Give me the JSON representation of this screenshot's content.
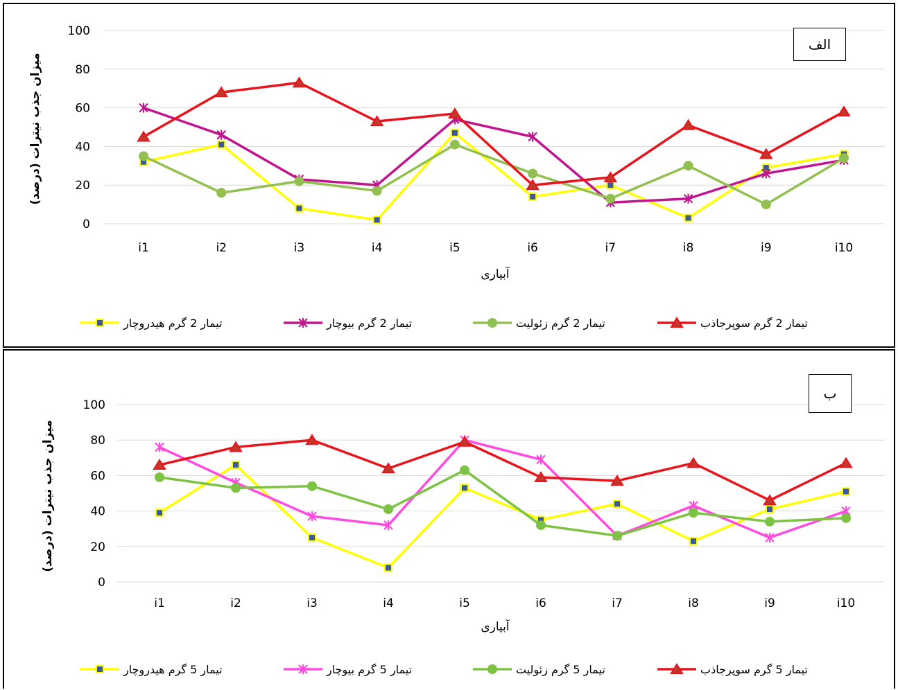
{
  "chart_data": [
    {
      "type": "line",
      "panel_label": "الف",
      "xlabel": "آبیاری",
      "ylabel": "میزان جذب نیترات (درصد)",
      "categories": [
        "i1",
        "i2",
        "i3",
        "i4",
        "i5",
        "i6",
        "i7",
        "i8",
        "i9",
        "i10"
      ],
      "ylim": [
        0,
        100
      ],
      "yticks": [
        "0",
        "20",
        "40",
        "60",
        "80",
        "100"
      ],
      "grid": true,
      "legend_position": "bottom",
      "series": [
        {
          "name": "تیمار 2 گرم هیدروچار",
          "color": "#ffff00",
          "marker": "square",
          "values": [
            32,
            41,
            8,
            2,
            47,
            14,
            20,
            3,
            29,
            36
          ]
        },
        {
          "name": "تیمار 2 گرم بیوچار",
          "color": "#c0158f",
          "marker": "star",
          "values": [
            60,
            46,
            23,
            20,
            54,
            45,
            11,
            13,
            26,
            33
          ]
        },
        {
          "name": "تیمار 2 گرم زئولیت",
          "color": "#92c050",
          "marker": "circle",
          "values": [
            35,
            16,
            22,
            17,
            41,
            26,
            13,
            30,
            10,
            34
          ]
        },
        {
          "name": "تیمار 2 گرم سوپرجاذب",
          "color": "#e8141c",
          "marker": "triangle",
          "values": [
            45,
            68,
            73,
            53,
            57,
            20,
            24,
            51,
            36,
            58
          ]
        }
      ]
    },
    {
      "type": "line",
      "panel_label": "ب",
      "xlabel": "آبیاری",
      "ylabel": "میزان جذب نیترات (درصد)",
      "categories": [
        "i1",
        "i2",
        "i3",
        "i4",
        "i5",
        "i6",
        "i7",
        "i8",
        "i9",
        "i10"
      ],
      "ylim": [
        0,
        100
      ],
      "yticks": [
        "0",
        "20",
        "40",
        "60",
        "80",
        "100"
      ],
      "grid": true,
      "legend_position": "bottom",
      "series": [
        {
          "name": "تیمار 5 گرم هیدروچار",
          "color": "#ffff00",
          "marker": "square",
          "values": [
            39,
            66,
            25,
            8,
            53,
            35,
            44,
            23,
            41,
            51
          ]
        },
        {
          "name": "تیمار 5 گرم بیوچار",
          "color": "#ff4be0",
          "marker": "star",
          "values": [
            76,
            56,
            37,
            32,
            80,
            69,
            26,
            43,
            25,
            40
          ]
        },
        {
          "name": "تیمار 5 گرم زئولیت",
          "color": "#7cc243",
          "marker": "circle",
          "values": [
            59,
            53,
            54,
            41,
            63,
            32,
            26,
            39,
            34,
            36
          ]
        },
        {
          "name": "تیمار 5 گرم سوپرجاذب",
          "color": "#e8141c",
          "marker": "triangle",
          "values": [
            66,
            76,
            80,
            64,
            79,
            59,
            57,
            67,
            46,
            67
          ]
        }
      ]
    }
  ]
}
